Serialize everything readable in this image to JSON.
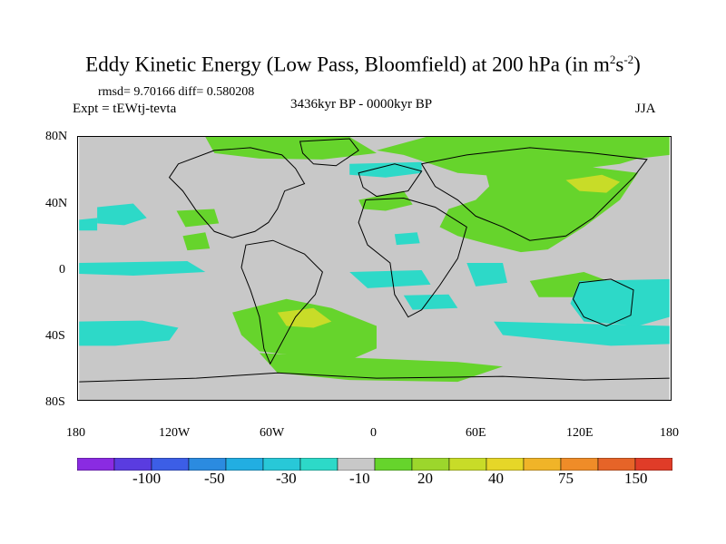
{
  "title": "Eddy Kinetic Energy (Low Pass, Bloomfield) at 200 hPa (in m",
  "title_units_sup1": "2",
  "title_units_mid": "s",
  "title_units_sup2": "-2",
  "title_close": ")",
  "stats": "rmsd= 9.70166 diff= 0.580208",
  "experiment": "Expt = tEWtj-tevta",
  "period": "3436kyr BP - 0000kyr BP",
  "season": "JJA",
  "axes": {
    "lat_labels": [
      "80N",
      "40N",
      "0",
      "40S",
      "80S"
    ],
    "lon_labels": [
      "180",
      "120W",
      "60W",
      "0",
      "60E",
      "120E",
      "180"
    ]
  },
  "colorbar": {
    "colors": [
      "#8a2be2",
      "#5a3ce0",
      "#3c5ee6",
      "#2b8be0",
      "#22aee2",
      "#28c8d8",
      "#2dd9c8",
      "#c8c8c8",
      "#66d42c",
      "#9cd62c",
      "#c8dc28",
      "#e6d628",
      "#f0b428",
      "#ef8c28",
      "#e66428",
      "#e03c28"
    ],
    "labels": [
      "-100",
      "-50",
      "-30",
      "-10",
      "20",
      "40",
      "75",
      "150"
    ]
  },
  "legend": {
    "negative_color": "#2dd9c8",
    "positive_color": "#66d42c",
    "strong_positive_color": "#c8dc28",
    "land_color": "#c8c8c8"
  }
}
